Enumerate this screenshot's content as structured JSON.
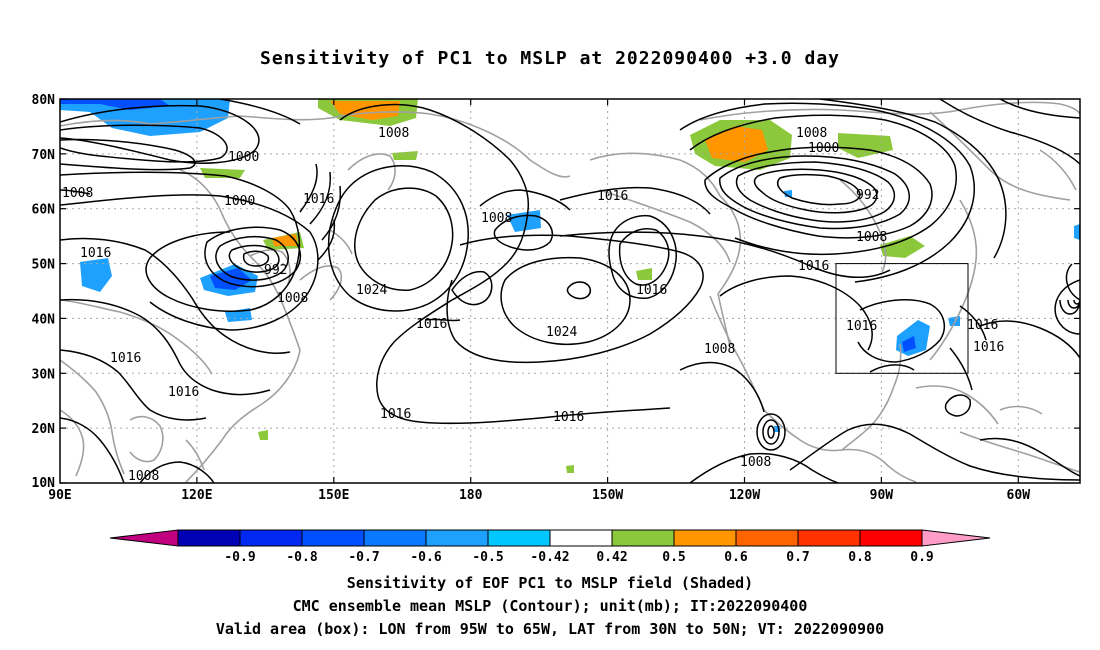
{
  "title": "Sensitivity of PC1 to MSLP at 2022090400 +3.0 day",
  "lat_labels": [
    "80N",
    "70N",
    "60N",
    "50N",
    "40N",
    "30N",
    "20N",
    "10N"
  ],
  "lon_labels": [
    "90E",
    "120E",
    "150E",
    "180",
    "150W",
    "120W",
    "90W",
    "60W"
  ],
  "contour_labels": [
    "1008",
    "1000",
    "1008",
    "1000",
    "1016",
    "1008",
    "1016",
    "1008",
    "1000",
    "992",
    "1016",
    "1008",
    "1016",
    "992",
    "1024",
    "1008",
    "1024",
    "1016",
    "1016",
    "1016",
    "1016",
    "1016",
    "1016",
    "1016",
    "1008",
    "1016",
    "1016",
    "1008",
    "1008"
  ],
  "colorbar": {
    "levels": [
      "-0.9",
      "-0.8",
      "-0.7",
      "-0.6",
      "-0.5",
      "-0.42",
      "0.42",
      "0.5",
      "0.6",
      "0.7",
      "0.8",
      "0.9"
    ],
    "colors": [
      "#c0007f",
      "#0000b4",
      "#0028f0",
      "#0050ff",
      "#0a78ff",
      "#1ea0ff",
      "#00c8ff",
      "#ffffff",
      "#8cc83c",
      "#ff9600",
      "#ff6400",
      "#ff3200",
      "#ff0000",
      "#ff9cc8"
    ]
  },
  "valid_box": {
    "lon_west": "95W",
    "lon_east": "65W",
    "lat_south": "30N",
    "lat_north": "50N"
  },
  "captions": [
    "Sensitivity of EOF PC1 to MSLP field (Shaded)",
    "CMC ensemble mean MSLP (Contour); unit(mb); IT:2022090400",
    "Valid area (box): LON from 95W to 65W, LAT from 30N to 50N; VT: 2022090900"
  ]
}
